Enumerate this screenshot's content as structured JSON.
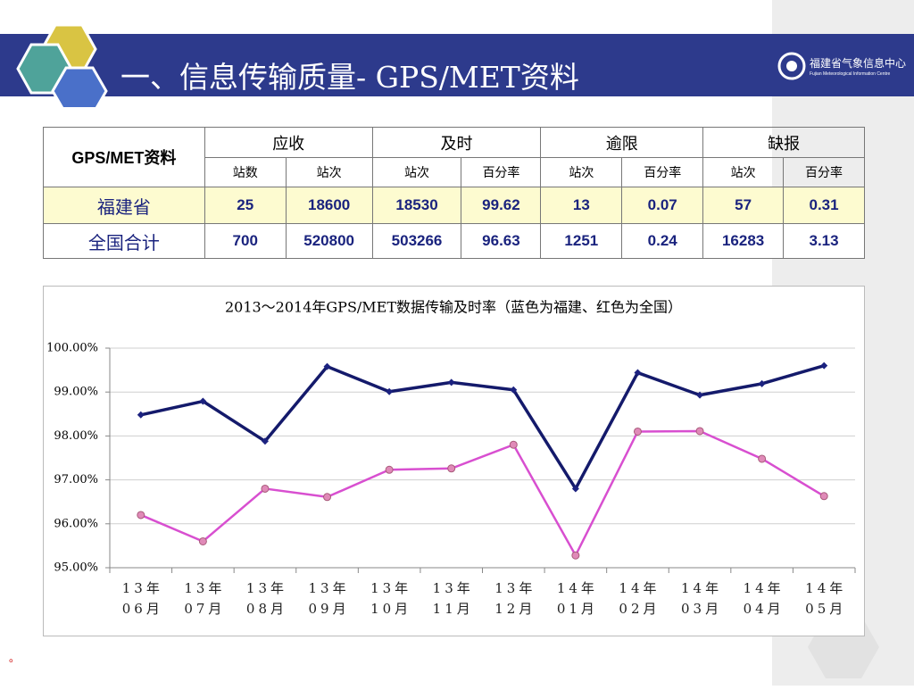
{
  "header": {
    "title": "一、信息传输质量- GPS/MET资料",
    "logo": "福建省气象信息中心",
    "logo_sub": "Fujian Meteorological Information Centre"
  },
  "table": {
    "corner": "GPS/MET资料",
    "groups": [
      "应收",
      "及时",
      "逾限",
      "缺报"
    ],
    "subheaders": [
      "站数",
      "站次",
      "站次",
      "百分率",
      "站次",
      "百分率",
      "站次",
      "百分率"
    ],
    "rows": [
      {
        "label": "福建省",
        "cells": [
          25,
          18600,
          18530,
          99.62,
          13,
          0.07,
          57,
          0.31
        ]
      },
      {
        "label": "全国合计",
        "cells": [
          700,
          520800,
          503266,
          96.63,
          1251,
          0.24,
          16283,
          3.13
        ]
      }
    ]
  },
  "chart_data": {
    "type": "line",
    "title": "2013～2014年GPS/MET数据传输及时率（蓝色为福建、红色为全国）",
    "categories": [
      "13年06月",
      "13年07月",
      "13年08月",
      "13年09月",
      "13年10月",
      "13年11月",
      "13年12月",
      "14年01月",
      "14年02月",
      "14年03月",
      "14年04月",
      "14年05月"
    ],
    "series": [
      {
        "color": "#141a6b",
        "marker": "#1c2280",
        "values": [
          98.48,
          98.79,
          97.88,
          99.58,
          99.01,
          99.22,
          99.05,
          96.8,
          99.44,
          98.93,
          99.19,
          99.6
        ]
      },
      {
        "color": "#d84fd0",
        "marker": "#e08ab8",
        "values": [
          96.2,
          95.6,
          96.8,
          96.61,
          97.23,
          97.26,
          97.8,
          95.28,
          98.1,
          98.11,
          97.48,
          96.63
        ]
      }
    ],
    "ylim": [
      95,
      100
    ],
    "yticks": [
      {
        "value": 95,
        "label": "95.00%"
      },
      {
        "value": 96,
        "label": "96.00%"
      },
      {
        "value": 97,
        "label": "97.00%"
      },
      {
        "value": 98,
        "label": "98.00%"
      },
      {
        "value": 99,
        "label": "99.00%"
      },
      {
        "value": 100,
        "label": "100.00%"
      }
    ],
    "grid": true
  },
  "footnote": "。"
}
